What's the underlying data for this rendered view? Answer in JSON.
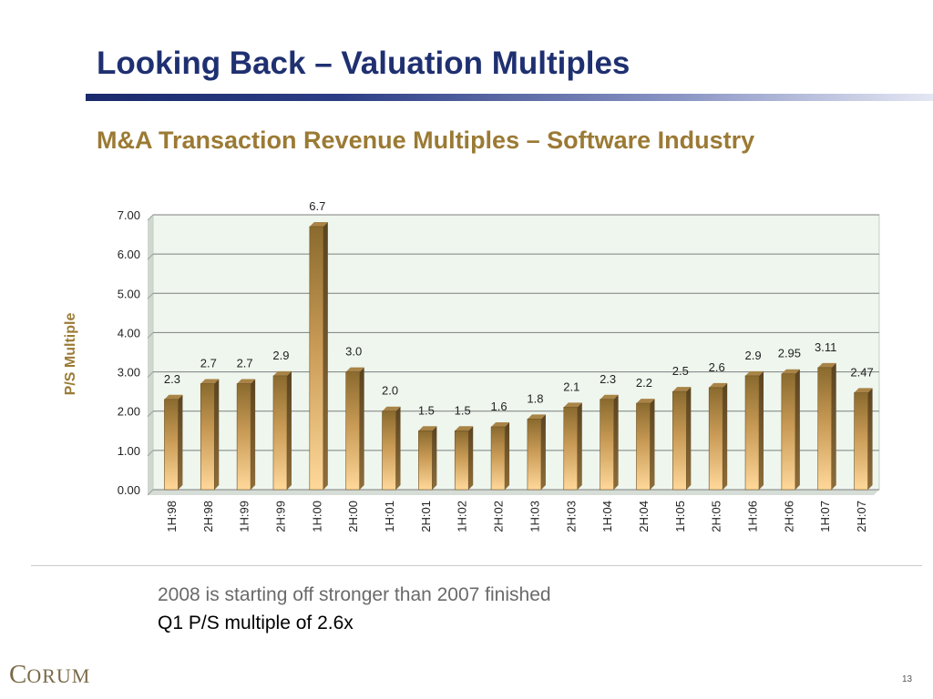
{
  "slide": {
    "title": "Looking Back – Valuation Multiples",
    "chart_title": "M&A Transaction Revenue Multiples – Software Industry",
    "note_line_1": "2008 is starting off stronger than 2007 finished",
    "note_line_2": "Q1 P/S multiple of 2.6x",
    "logo_first": "C",
    "logo_rest": "ORUM",
    "page_number": "13"
  },
  "colors": {
    "title": "#1f3071",
    "chart_title": "#9b7a34",
    "axis_label": "#9b7a34",
    "plot_bg": "#eef6ee",
    "bar_top": "#8a6a2e",
    "bar_bottom": "#ffd89a"
  },
  "chart_data": {
    "type": "bar",
    "title": "",
    "xlabel": "",
    "ylabel": "P/S Multiple",
    "ylim": [
      0,
      7
    ],
    "yticks": [
      "0.00",
      "1.00",
      "2.00",
      "3.00",
      "4.00",
      "5.00",
      "6.00",
      "7.00"
    ],
    "grid": true,
    "categories": [
      "1H:98",
      "2H:98",
      "1H:99",
      "2H:99",
      "1H:00",
      "2H:00",
      "1H:01",
      "2H:01",
      "1H:02",
      "2H:02",
      "1H:03",
      "2H:03",
      "1H:04",
      "2H:04",
      "1H:05",
      "2H:05",
      "1H:06",
      "2H:06",
      "1H:07",
      "2H:07"
    ],
    "values": [
      2.3,
      2.7,
      2.7,
      2.9,
      6.7,
      3.0,
      2.0,
      1.5,
      1.5,
      1.6,
      1.8,
      2.1,
      2.3,
      2.2,
      2.5,
      2.6,
      2.9,
      2.95,
      3.11,
      2.47
    ],
    "labels": [
      "2.3",
      "2.7",
      "2.7",
      "2.9",
      "6.7",
      "3.0",
      "2.0",
      "1.5",
      "1.5",
      "1.6",
      "1.8",
      "2.1",
      "2.3",
      "2.2",
      "2.5",
      "2.6",
      "2.9",
      "2.95",
      "3.11",
      "2.47"
    ]
  }
}
